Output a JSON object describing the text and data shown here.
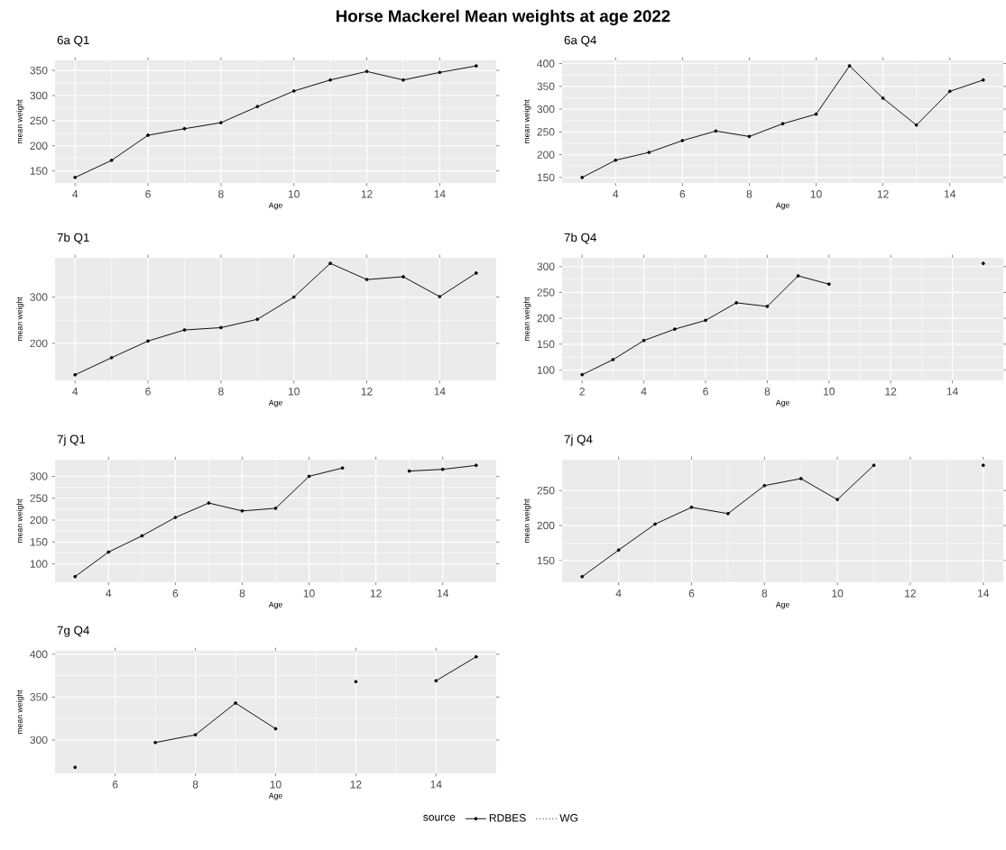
{
  "chart_data": [
    {
      "type": "line",
      "title": "Horse Mackerel Mean weights at age 2022",
      "subtitle": "6a Q1",
      "xlabel": "Age",
      "ylabel": "mean weight",
      "grid": true,
      "marker": "circle",
      "x": [
        4,
        5,
        6,
        7,
        8,
        9,
        10,
        11,
        12,
        13,
        14,
        15
      ],
      "xlim": [
        3.45,
        15.55
      ],
      "ylim": [
        126,
        370
      ],
      "xticks": [
        4,
        6,
        8,
        10,
        12,
        14
      ],
      "yticks": [
        150,
        200,
        250,
        300,
        350
      ],
      "series": [
        {
          "color": "#000000",
          "line_style": "solid",
          "values": [
            137,
            171,
            221,
            234,
            246,
            278,
            309,
            331,
            348,
            331,
            346,
            359
          ]
        }
      ]
    },
    {
      "type": "line",
      "title": "6a Q4",
      "xlabel": "Age",
      "ylabel": "mean weight",
      "grid": true,
      "marker": "circle",
      "x": [
        3,
        4,
        5,
        6,
        7,
        8,
        9,
        10,
        11,
        12,
        13,
        14,
        15
      ],
      "xlim": [
        2.4,
        15.6
      ],
      "ylim": [
        138,
        407
      ],
      "xticks": [
        4,
        6,
        8,
        10,
        12,
        14
      ],
      "yticks": [
        150,
        200,
        250,
        300,
        350,
        400
      ],
      "series": [
        {
          "color": "#000000",
          "line_style": "solid",
          "values": [
            150,
            188,
            205,
            231,
            252,
            240,
            268,
            289,
            395,
            324,
            265,
            339,
            364
          ]
        }
      ]
    },
    {
      "type": "line",
      "title": "7b Q1",
      "xlabel": "Age",
      "ylabel": "mean weight",
      "grid": true,
      "marker": "circle",
      "x": [
        4,
        5,
        6,
        7,
        8,
        9,
        10,
        11,
        12,
        13,
        14,
        15
      ],
      "xlim": [
        3.45,
        15.55
      ],
      "ylim": [
        120,
        385
      ],
      "xticks": [
        4,
        6,
        8,
        10,
        12,
        14
      ],
      "yticks": [
        200,
        300
      ],
      "series": [
        {
          "color": "#000000",
          "line_style": "solid",
          "values": [
            132,
            169,
            205,
            229,
            234,
            252,
            300,
            373,
            338,
            344,
            301,
            352
          ]
        }
      ]
    },
    {
      "type": "line",
      "title": "7b Q4",
      "xlabel": "Age",
      "ylabel": "mean weight",
      "grid": true,
      "marker": "circle",
      "x": [
        2,
        3,
        4,
        5,
        6,
        7,
        8,
        9,
        10,
        11,
        12,
        13,
        14,
        15
      ],
      "xlim": [
        1.35,
        15.65
      ],
      "ylim": [
        80,
        317
      ],
      "xticks": [
        2,
        4,
        6,
        8,
        10,
        12,
        14
      ],
      "yticks": [
        100,
        150,
        200,
        250,
        300
      ],
      "series": [
        {
          "color": "#000000",
          "line_style": "solid",
          "values": [
            91,
            120,
            157,
            179,
            196,
            230,
            223,
            282,
            266,
            null,
            null,
            null,
            null,
            306
          ]
        }
      ]
    },
    {
      "type": "line",
      "title": "7j Q1",
      "xlabel": "Age",
      "ylabel": "mean weight",
      "grid": true,
      "marker": "circle",
      "x": [
        3,
        4,
        5,
        6,
        7,
        8,
        9,
        10,
        11,
        12,
        13,
        14,
        15
      ],
      "xlim": [
        2.4,
        15.6
      ],
      "ylim": [
        58,
        338
      ],
      "xticks": [
        4,
        6,
        8,
        10,
        12,
        14
      ],
      "yticks": [
        100,
        150,
        200,
        250,
        300
      ],
      "series": [
        {
          "color": "#000000",
          "line_style": "solid",
          "values": [
            71,
            127,
            164,
            206,
            239,
            221,
            227,
            300,
            319,
            null,
            312,
            316,
            325
          ]
        }
      ]
    },
    {
      "type": "line",
      "title": "7j Q4",
      "xlabel": "Age",
      "ylabel": "mean weight",
      "grid": true,
      "marker": "circle",
      "x": [
        3,
        4,
        5,
        6,
        7,
        8,
        9,
        10,
        11,
        12,
        13,
        14
      ],
      "xlim": [
        2.45,
        14.55
      ],
      "ylim": [
        119,
        294
      ],
      "xticks": [
        4,
        6,
        8,
        10,
        12,
        14
      ],
      "yticks": [
        150,
        200,
        250
      ],
      "series": [
        {
          "color": "#000000",
          "line_style": "solid",
          "values": [
            127,
            165,
            202,
            226,
            217,
            257,
            267,
            237,
            286,
            null,
            null,
            286
          ]
        }
      ]
    },
    {
      "type": "line",
      "title": "7g Q4",
      "xlabel": "Age",
      "ylabel": "mean weight",
      "grid": true,
      "marker": "circle",
      "legend": "bottom",
      "legend_title": "source",
      "x": [
        5,
        6,
        7,
        8,
        9,
        10,
        11,
        12,
        13,
        14,
        15
      ],
      "xlim": [
        4.5,
        15.5
      ],
      "ylim": [
        261,
        404
      ],
      "xticks": [
        6,
        8,
        10,
        12,
        14
      ],
      "yticks": [
        300,
        350,
        400
      ],
      "series": [
        {
          "name": "RDBES",
          "color": "#000000",
          "line_style": "solid",
          "values": [
            268,
            null,
            297,
            306,
            343,
            313,
            null,
            368,
            null,
            369,
            397
          ]
        },
        {
          "name": "WG",
          "color": "#000000",
          "line_style": "dotted",
          "values": [
            null,
            null,
            null,
            null,
            null,
            null,
            null,
            null,
            null,
            null,
            null
          ]
        }
      ]
    }
  ]
}
